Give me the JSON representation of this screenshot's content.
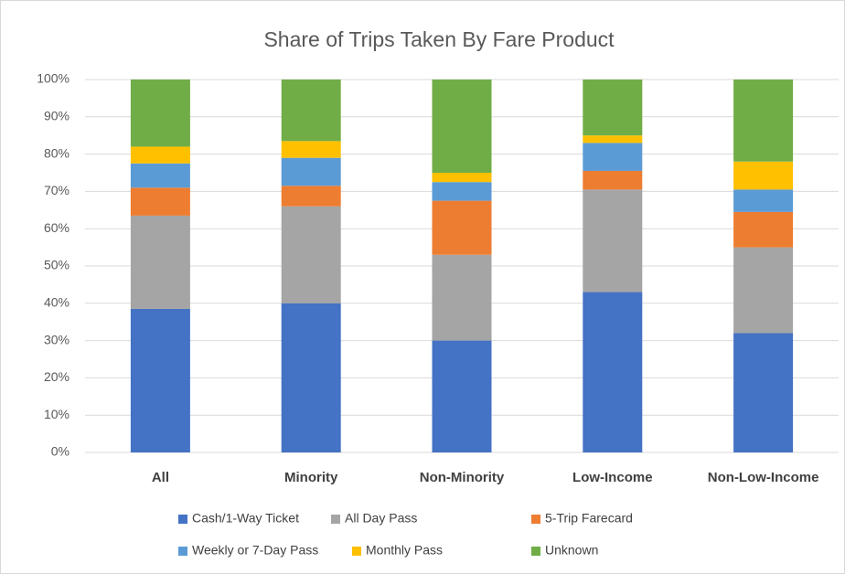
{
  "chart_data": {
    "type": "stacked_bar",
    "title": "Share of Trips Taken By Fare Product",
    "categories": [
      "All",
      "Minority",
      "Non-Minority",
      "Low-Income",
      "Non-Low-Income"
    ],
    "series": [
      {
        "name": "Cash/1-Way Ticket",
        "color": "#4472c4",
        "values": [
          38.5,
          40,
          30,
          43,
          32
        ]
      },
      {
        "name": "All Day Pass",
        "color": "#a5a5a5",
        "values": [
          25,
          26,
          23,
          27.5,
          23
        ]
      },
      {
        "name": "5-Trip Farecard",
        "color": "#ed7d31",
        "values": [
          7.5,
          5.5,
          14.5,
          5,
          9.5
        ]
      },
      {
        "name": "Weekly or 7-Day Pass",
        "color": "#5b9bd5",
        "values": [
          6.5,
          7.5,
          5,
          7.5,
          6
        ]
      },
      {
        "name": "Monthly Pass",
        "color": "#ffc000",
        "values": [
          4.5,
          4.5,
          2.5,
          2,
          7.5
        ]
      },
      {
        "name": "Unknown",
        "color": "#70ad47",
        "values": [
          18,
          16.5,
          25,
          15,
          22
        ]
      }
    ],
    "ylim": [
      0,
      100
    ],
    "yticks": [
      {
        "value": 0,
        "label": "0%"
      },
      {
        "value": 10,
        "label": "10%"
      },
      {
        "value": 20,
        "label": "20%"
      },
      {
        "value": 30,
        "label": "30%"
      },
      {
        "value": 40,
        "label": "40%"
      },
      {
        "value": 50,
        "label": "50%"
      },
      {
        "value": 60,
        "label": "60%"
      },
      {
        "value": 70,
        "label": "70%"
      },
      {
        "value": 80,
        "label": "80%"
      },
      {
        "value": 90,
        "label": "90%"
      },
      {
        "value": 100,
        "label": "100%"
      }
    ],
    "grid": true,
    "legend": "bottom"
  }
}
